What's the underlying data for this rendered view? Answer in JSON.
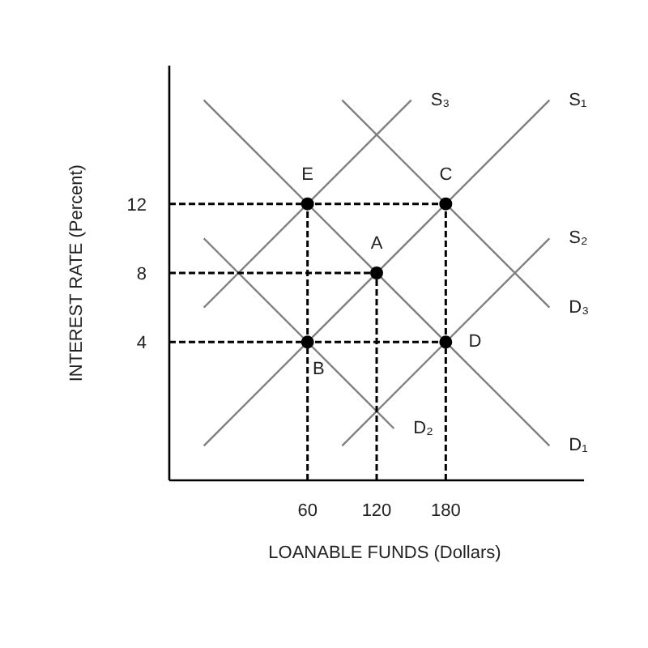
{
  "chart_data": {
    "type": "line",
    "xlabel": "LOANABLE FUNDS (Dollars)",
    "ylabel": "INTEREST RATE (Percent)",
    "xlim": [
      -60,
      300
    ],
    "ylim": [
      -4,
      20
    ],
    "xticks": [
      60,
      120,
      180
    ],
    "yticks": [
      4,
      8,
      12
    ],
    "line_style": "solid",
    "series": [
      {
        "name": "S₁",
        "color": "#808080",
        "x": [
          -30,
          270
        ],
        "values": [
          -2,
          18
        ]
      },
      {
        "name": "S₂",
        "color": "#808080",
        "x": [
          90,
          270
        ],
        "values": [
          -2,
          10
        ]
      },
      {
        "name": "S₃",
        "color": "#808080",
        "x": [
          -30,
          150
        ],
        "values": [
          6,
          18
        ]
      },
      {
        "name": "D₁",
        "color": "#808080",
        "x": [
          -30,
          270
        ],
        "values": [
          18,
          -2
        ]
      },
      {
        "name": "D₂",
        "color": "#808080",
        "x": [
          -30,
          135
        ],
        "values": [
          10,
          -1
        ]
      },
      {
        "name": "D₃",
        "color": "#808080",
        "x": [
          90,
          270
        ],
        "values": [
          18,
          6
        ]
      },
      {
        "color": "#000000",
        "line_style": "dashed",
        "x": [
          -60,
          180
        ],
        "values": [
          12,
          12
        ]
      },
      {
        "color": "#000000",
        "line_style": "dashed",
        "x": [
          -60,
          120
        ],
        "values": [
          8,
          8
        ]
      },
      {
        "color": "#000000",
        "line_style": "dashed",
        "x": [
          -60,
          180
        ],
        "values": [
          4,
          4
        ]
      },
      {
        "color": "#000000",
        "line_style": "dashed",
        "x": [
          60,
          60
        ],
        "values": [
          -4,
          12
        ]
      },
      {
        "color": "#000000",
        "line_style": "dashed",
        "x": [
          120,
          120
        ],
        "values": [
          -4,
          8
        ]
      },
      {
        "color": "#000000",
        "line_style": "dashed",
        "x": [
          180,
          180
        ],
        "values": [
          -4,
          12
        ]
      },
      {
        "type": "scatter",
        "color": "#000000",
        "marker": "circle",
        "x": [
          60,
          120,
          180,
          60,
          180
        ],
        "values": [
          12,
          8,
          12,
          4,
          4
        ]
      }
    ],
    "annotations": [
      {
        "text": "E",
        "x": 60,
        "y": 12
      },
      {
        "text": "A",
        "x": 120,
        "y": 8
      },
      {
        "text": "C",
        "x": 180,
        "y": 12
      },
      {
        "text": "B",
        "x": 60,
        "y": 4
      },
      {
        "text": "D",
        "x": 180,
        "y": 4
      }
    ]
  }
}
